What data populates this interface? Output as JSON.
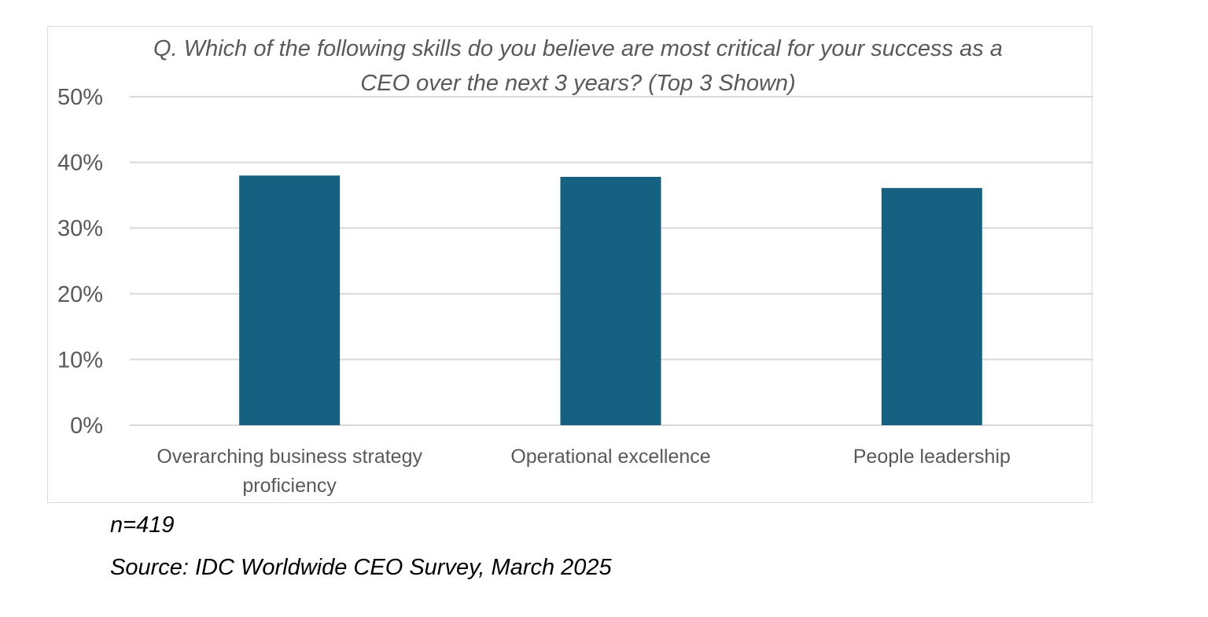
{
  "chart_data": {
    "type": "bar",
    "title": "Q. Which of the following skills do you believe are most critical for your success as a CEO over the next 3 years? (Top 3 Shown)",
    "categories": [
      [
        "Overarching business strategy",
        "proficiency"
      ],
      [
        "Operational excellence"
      ],
      [
        "People leadership"
      ]
    ],
    "values": [
      38.0,
      37.8,
      36.1
    ],
    "ylim": [
      0,
      50
    ],
    "yticks": [
      "0%",
      "10%",
      "20%",
      "30%",
      "40%",
      "50%"
    ],
    "grid": true,
    "bar_color": "#166082",
    "xlabel": "",
    "ylabel": ""
  },
  "notes": {
    "n": "n=419",
    "source": "Source: IDC Worldwide CEO Survey, March 2025"
  }
}
